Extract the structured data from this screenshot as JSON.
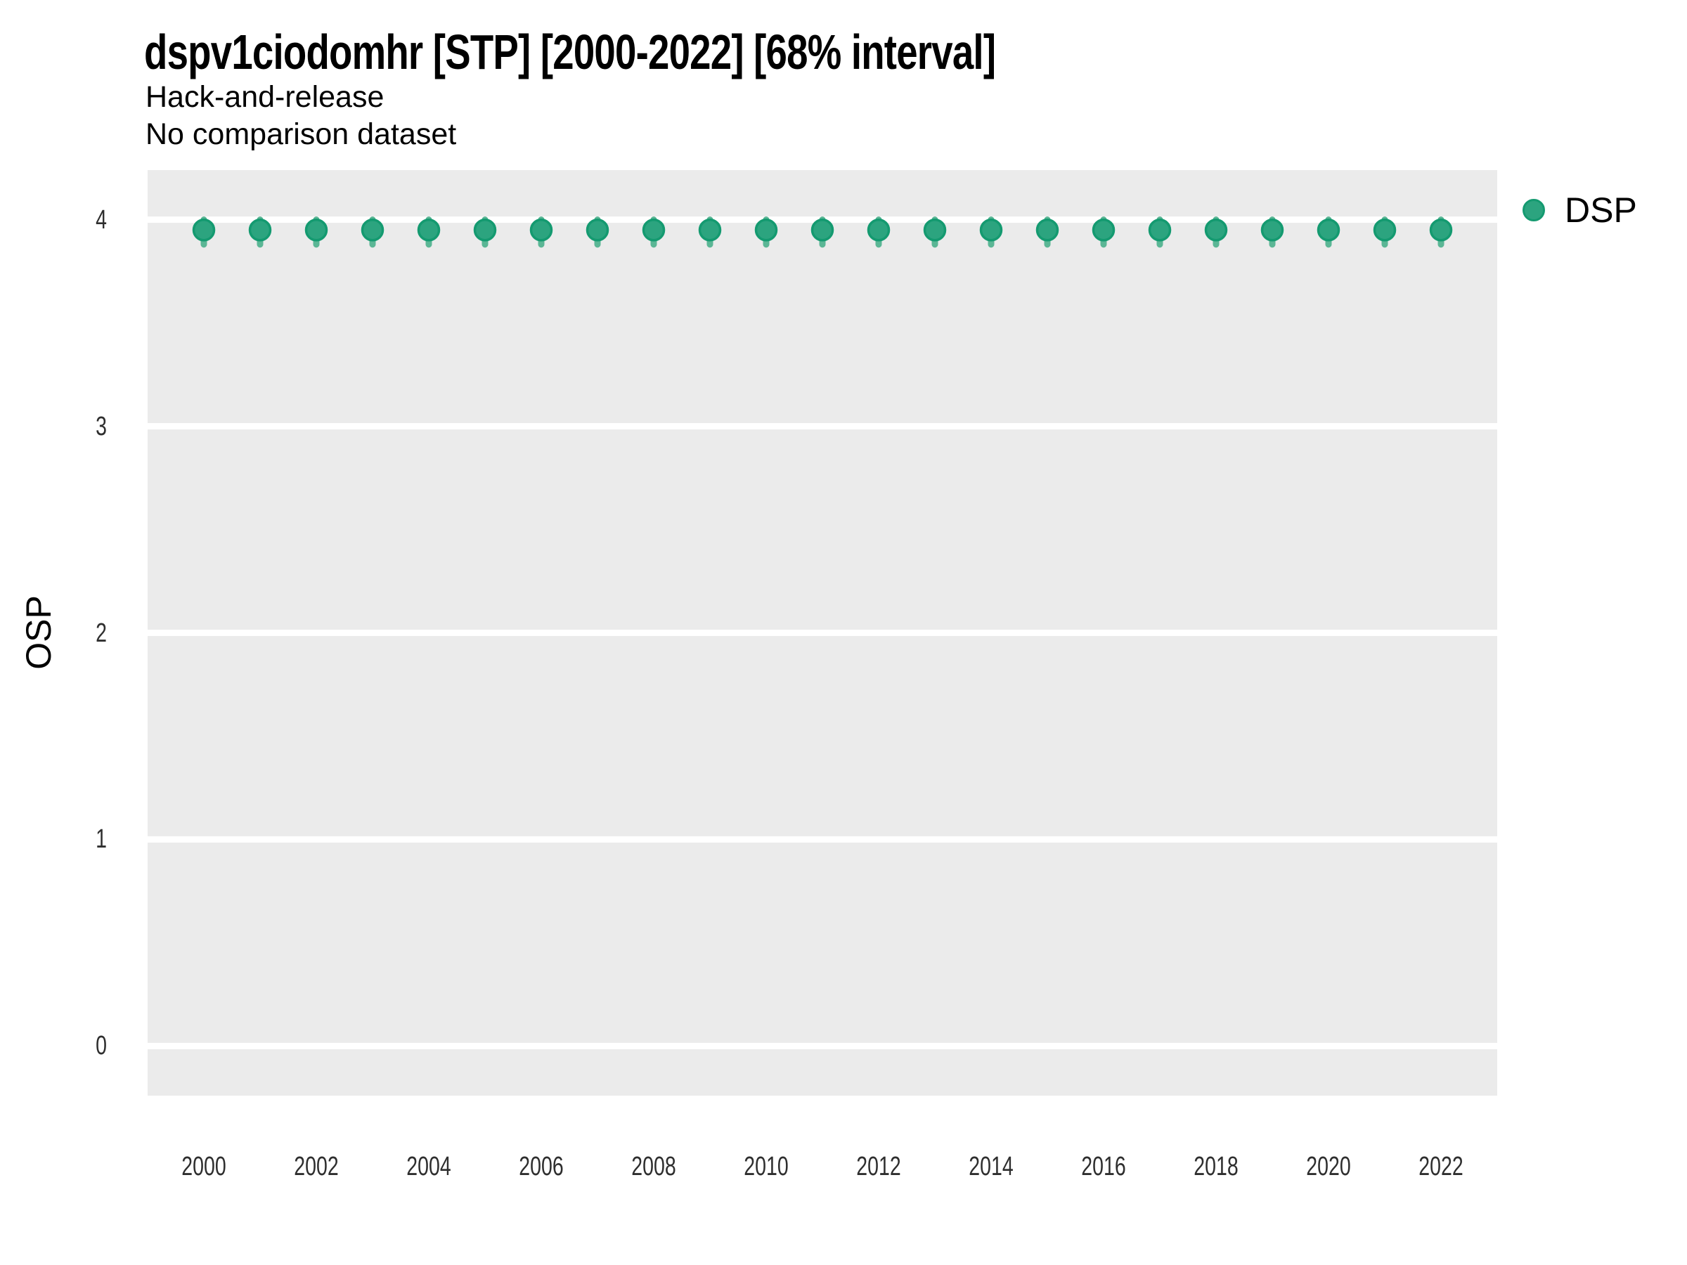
{
  "chart_data": {
    "type": "scatter",
    "title": "dspv1ciodomhr [STP] [2000-2022] [68% interval]",
    "subtitle": "Hack-and-release",
    "note": "No comparison dataset",
    "ylabel": "OSP",
    "xlabel": "",
    "xlim": [
      1999,
      2023
    ],
    "ylim": [
      -0.24,
      4.24
    ],
    "x_ticks": [
      "2000",
      "2002",
      "2004",
      "2006",
      "2008",
      "2010",
      "2012",
      "2014",
      "2016",
      "2018",
      "2020",
      "2022"
    ],
    "x_tick_years": [
      2000,
      2002,
      2004,
      2006,
      2008,
      2010,
      2012,
      2014,
      2016,
      2018,
      2020,
      2022
    ],
    "y_ticks": [
      "0",
      "1",
      "2",
      "3",
      "4"
    ],
    "y_tick_values": [
      0,
      1,
      2,
      3,
      4
    ],
    "grid": "horizontal-major-only",
    "legend_position": "right-top",
    "legend": {
      "label": "DSP"
    },
    "series": [
      {
        "name": "DSP",
        "points": [
          {
            "x": 2000,
            "y": 3.95,
            "lo": 3.88,
            "hi": 4.0
          },
          {
            "x": 2001,
            "y": 3.95,
            "lo": 3.88,
            "hi": 4.0
          },
          {
            "x": 2002,
            "y": 3.95,
            "lo": 3.88,
            "hi": 4.0
          },
          {
            "x": 2003,
            "y": 3.95,
            "lo": 3.88,
            "hi": 4.0
          },
          {
            "x": 2004,
            "y": 3.95,
            "lo": 3.88,
            "hi": 4.0
          },
          {
            "x": 2005,
            "y": 3.95,
            "lo": 3.88,
            "hi": 4.0
          },
          {
            "x": 2006,
            "y": 3.95,
            "lo": 3.88,
            "hi": 4.0
          },
          {
            "x": 2007,
            "y": 3.95,
            "lo": 3.88,
            "hi": 4.0
          },
          {
            "x": 2008,
            "y": 3.95,
            "lo": 3.88,
            "hi": 4.0
          },
          {
            "x": 2009,
            "y": 3.95,
            "lo": 3.88,
            "hi": 4.0
          },
          {
            "x": 2010,
            "y": 3.95,
            "lo": 3.88,
            "hi": 4.0
          },
          {
            "x": 2011,
            "y": 3.95,
            "lo": 3.88,
            "hi": 4.0
          },
          {
            "x": 2012,
            "y": 3.95,
            "lo": 3.88,
            "hi": 4.0
          },
          {
            "x": 2013,
            "y": 3.95,
            "lo": 3.88,
            "hi": 4.0
          },
          {
            "x": 2014,
            "y": 3.95,
            "lo": 3.88,
            "hi": 4.0
          },
          {
            "x": 2015,
            "y": 3.95,
            "lo": 3.88,
            "hi": 4.0
          },
          {
            "x": 2016,
            "y": 3.95,
            "lo": 3.88,
            "hi": 4.0
          },
          {
            "x": 2017,
            "y": 3.95,
            "lo": 3.88,
            "hi": 4.0
          },
          {
            "x": 2018,
            "y": 3.95,
            "lo": 3.88,
            "hi": 4.0
          },
          {
            "x": 2019,
            "y": 3.95,
            "lo": 3.88,
            "hi": 4.0
          },
          {
            "x": 2020,
            "y": 3.95,
            "lo": 3.88,
            "hi": 4.0
          },
          {
            "x": 2021,
            "y": 3.95,
            "lo": 3.88,
            "hi": 4.0
          },
          {
            "x": 2022,
            "y": 3.95,
            "lo": 3.88,
            "hi": 4.0
          }
        ]
      }
    ],
    "colors": {
      "point_fill": "#2CA47F",
      "point_stroke": "#149A70",
      "interval_line": "#5BB695",
      "panel_bg": "#EBEBEB",
      "gridline": "#FFFFFF",
      "title_text": "#000000",
      "tick_text": "#2E2E2E"
    }
  }
}
